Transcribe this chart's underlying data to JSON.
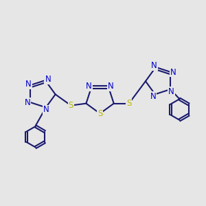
{
  "background_color": "#e6e6e6",
  "bond_color": "#1a1a6e",
  "sulfur_color": "#b8b800",
  "nitrogen_color": "#0000cc",
  "line_width": 1.5,
  "figsize": [
    3.0,
    3.0
  ],
  "dpi": 100,
  "xlim": [
    0,
    10
  ],
  "ylim": [
    0,
    10
  ]
}
